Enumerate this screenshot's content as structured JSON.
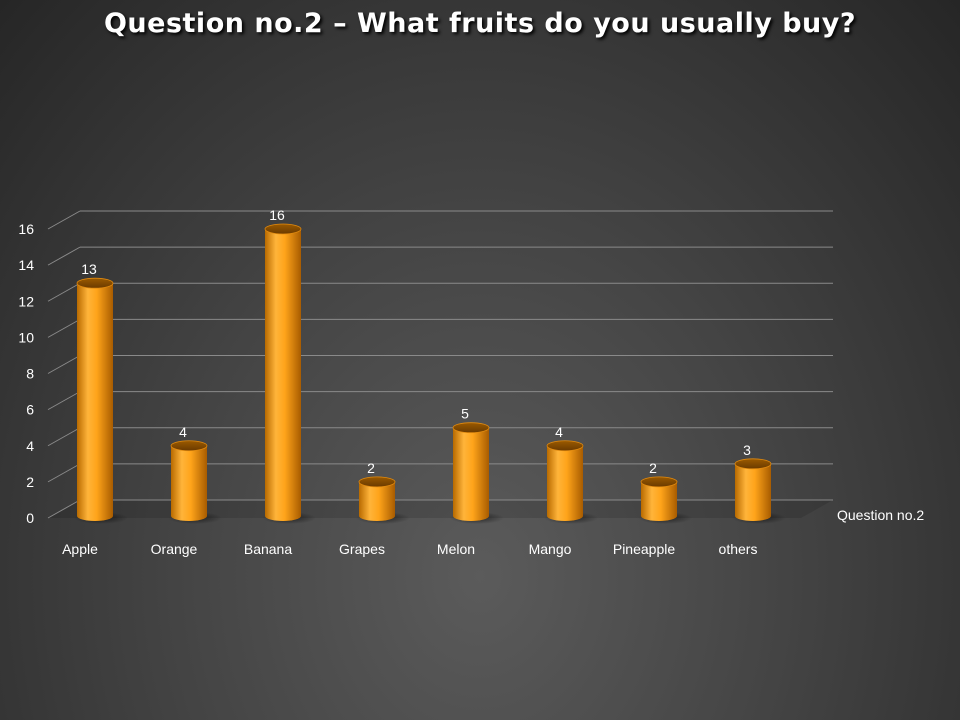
{
  "chart_data": {
    "type": "bar",
    "title": "Question no.2 – What fruits do you usually buy?",
    "categories": [
      "Apple",
      "Orange",
      "Banana",
      "Grapes",
      "Melon",
      "Mango",
      "Pineapple",
      "others"
    ],
    "series": [
      {
        "name": "Question no.2",
        "values": [
          13,
          4,
          16,
          2,
          5,
          4,
          2,
          3
        ]
      }
    ],
    "ylim": [
      0,
      16
    ],
    "yticks": [
      0,
      2,
      4,
      6,
      8,
      10,
      12,
      14,
      16
    ],
    "grid": true,
    "legend_position": "right",
    "bar_color": "#f39c12",
    "style": "3d-cylinder"
  }
}
